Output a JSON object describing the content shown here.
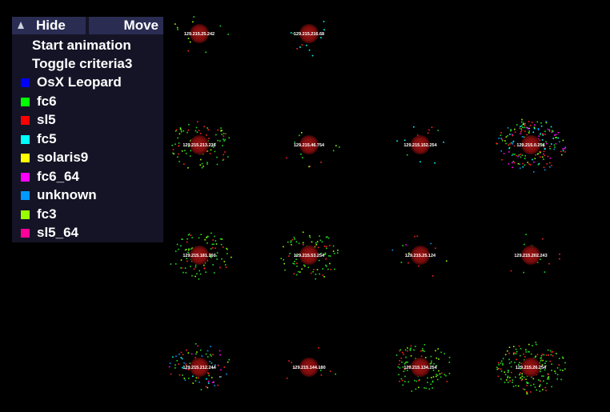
{
  "controls": {
    "hide_label": "Hide",
    "move_label": "Move",
    "start_animation": "Start animation",
    "toggle_criteria": "Toggle criteria3"
  },
  "legend": [
    {
      "label": "OsX Leopard",
      "color": "#0000ff"
    },
    {
      "label": "fc6",
      "color": "#00ff00"
    },
    {
      "label": "sl5",
      "color": "#ff0000"
    },
    {
      "label": "fc5",
      "color": "#00ffff"
    },
    {
      "label": "solaris9",
      "color": "#ffff00"
    },
    {
      "label": "fc6_64",
      "color": "#ff00ff"
    },
    {
      "label": "unknown",
      "color": "#0099ff"
    },
    {
      "label": "fc3",
      "color": "#99ff00"
    },
    {
      "label": "sl5_64",
      "color": "#ff0099"
    }
  ],
  "nodes": [
    {
      "ip": "129.215.25.242",
      "density": "sparse",
      "mix": "green"
    },
    {
      "ip": "129.215.216.68",
      "density": "sparse",
      "mix": "cyan"
    },
    {
      "ip": "129.215.213.236",
      "density": "medium",
      "mix": "green"
    },
    {
      "ip": "129.215.46.754",
      "density": "sparse",
      "mix": "green"
    },
    {
      "ip": "129.215.152.254",
      "density": "sparse",
      "mix": "cyan"
    },
    {
      "ip": "129.215.0.254",
      "density": "dense",
      "mix": "mixed"
    },
    {
      "ip": "129.215.181.160",
      "density": "medium",
      "mix": "green"
    },
    {
      "ip": "129.215.53.254",
      "density": "medium",
      "mix": "green"
    },
    {
      "ip": "129.215.25.124",
      "density": "sparse",
      "mix": "mixed"
    },
    {
      "ip": "129.215.202.243",
      "density": "sparse",
      "mix": "red"
    },
    {
      "ip": "129.215.212.244",
      "density": "medium",
      "mix": "mixed"
    },
    {
      "ip": "129.215.144.180",
      "density": "sparse",
      "mix": "red"
    },
    {
      "ip": "129.215.134.254",
      "density": "medium",
      "mix": "green"
    },
    {
      "ip": "129.215.26.254",
      "density": "dense",
      "mix": "green"
    }
  ]
}
